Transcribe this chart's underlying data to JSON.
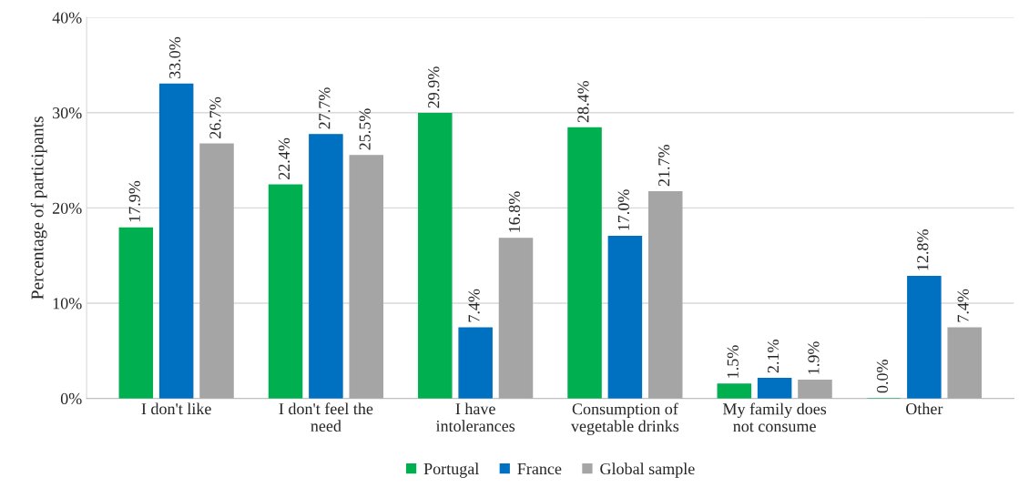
{
  "chart_data": {
    "type": "bar",
    "ylabel": "Percentage of participants",
    "categories": [
      "I don't like",
      "I don't feel the\nneed",
      "I have\nintolerances",
      "Consumption of\nvegetable drinks",
      "My family does\nnot consume",
      "Other"
    ],
    "series": [
      {
        "name": "Portugal",
        "color": "#00b050",
        "values": [
          17.9,
          22.4,
          29.9,
          28.4,
          1.5,
          0.0
        ],
        "value_labels": [
          "17.9%",
          "22.4%",
          "29.9%",
          "28.4%",
          "1.5%",
          "0.0%"
        ]
      },
      {
        "name": "France",
        "color": "#0070c0",
        "values": [
          33.0,
          27.7,
          7.4,
          17.0,
          2.1,
          12.8
        ],
        "value_labels": [
          "33.0%",
          "27.7%",
          "7.4%",
          "17.0%",
          "2.1%",
          "12.8%"
        ]
      },
      {
        "name": "Global sample",
        "color": "#a5a5a5",
        "values": [
          26.7,
          25.5,
          16.8,
          21.7,
          1.9,
          7.4
        ],
        "value_labels": [
          "26.7%",
          "25.5%",
          "16.8%",
          "21.7%",
          "1.9%",
          "7.4%"
        ]
      }
    ],
    "ylim": [
      0,
      40
    ],
    "yticks": [
      {
        "value": 0,
        "label": "0%"
      },
      {
        "value": 10,
        "label": "10%"
      },
      {
        "value": 20,
        "label": "20%"
      },
      {
        "value": 30,
        "label": "30%"
      },
      {
        "value": 40,
        "label": "40%"
      }
    ],
    "grid": "y",
    "legend": "bottom"
  }
}
